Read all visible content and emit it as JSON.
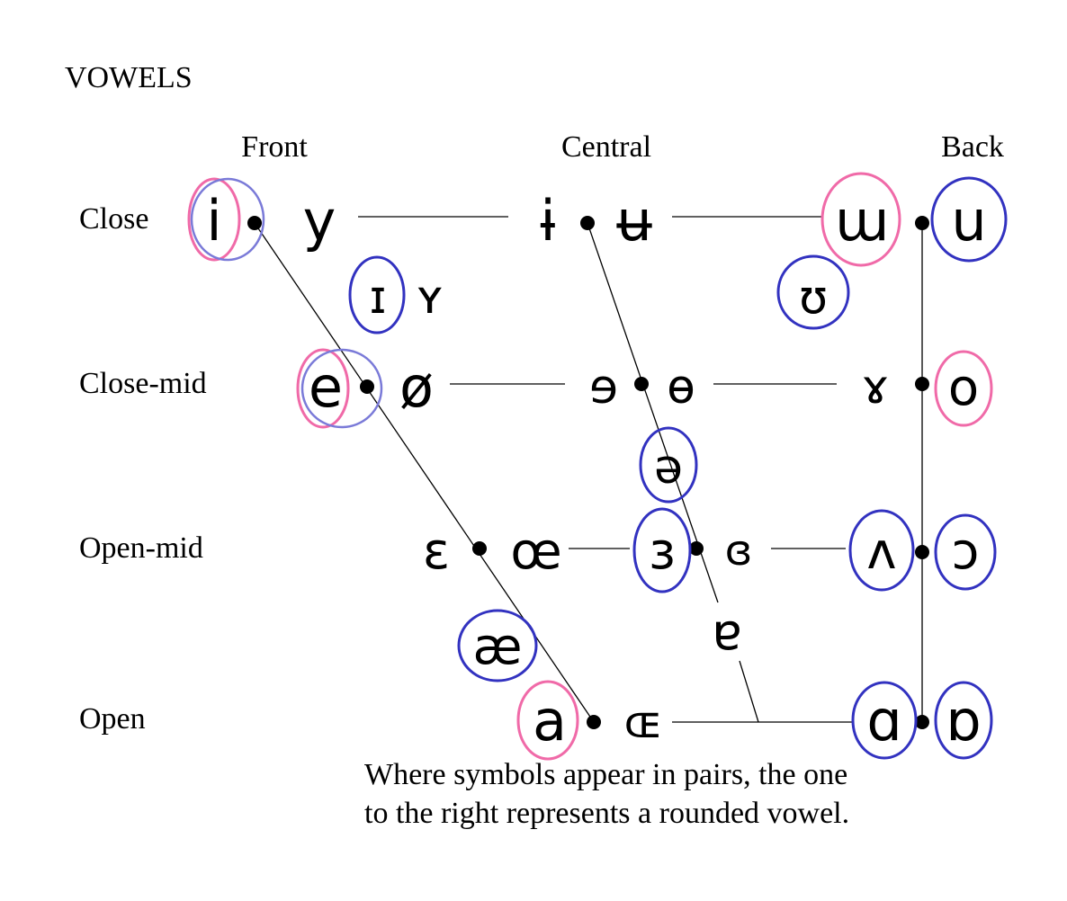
{
  "title": "VOWELS",
  "columns": {
    "front": "Front",
    "central": "Central",
    "back": "Back"
  },
  "rows": {
    "close": "Close",
    "close_mid": "Close-mid",
    "open_mid": "Open-mid",
    "open": "Open"
  },
  "symbols": {
    "i": "i",
    "y": "y",
    "barred_i": "ɨ",
    "barred_u": "ʉ",
    "turned_m": "ɯ",
    "u": "u",
    "small_cap_i": "ɪ",
    "small_cap_y": "ʏ",
    "upsilon": "ʊ",
    "e": "e",
    "o_slash": "ø",
    "rev_e": "ɘ",
    "barred_o": "ɵ",
    "rams_horn": "ɤ",
    "o": "o",
    "schwa": "ə",
    "epsilon": "ɛ",
    "oe": "œ",
    "rev_epsilon": "ɜ",
    "closed_rev_epsilon": "ɞ",
    "turned_v": "ʌ",
    "open_o": "ɔ",
    "ash": "æ",
    "turned_a": "ɐ",
    "a": "a",
    "small_cap_oe": "ɶ",
    "script_a": "ɑ",
    "turned_script_a": "ɒ"
  },
  "note": {
    "line1": "Where symbols appear in pairs, the one",
    "line2": "to the right represents a rounded vowel."
  },
  "colors": {
    "unrounded_circle": "#f06aa8",
    "rounded_circle": "#3232c0"
  }
}
